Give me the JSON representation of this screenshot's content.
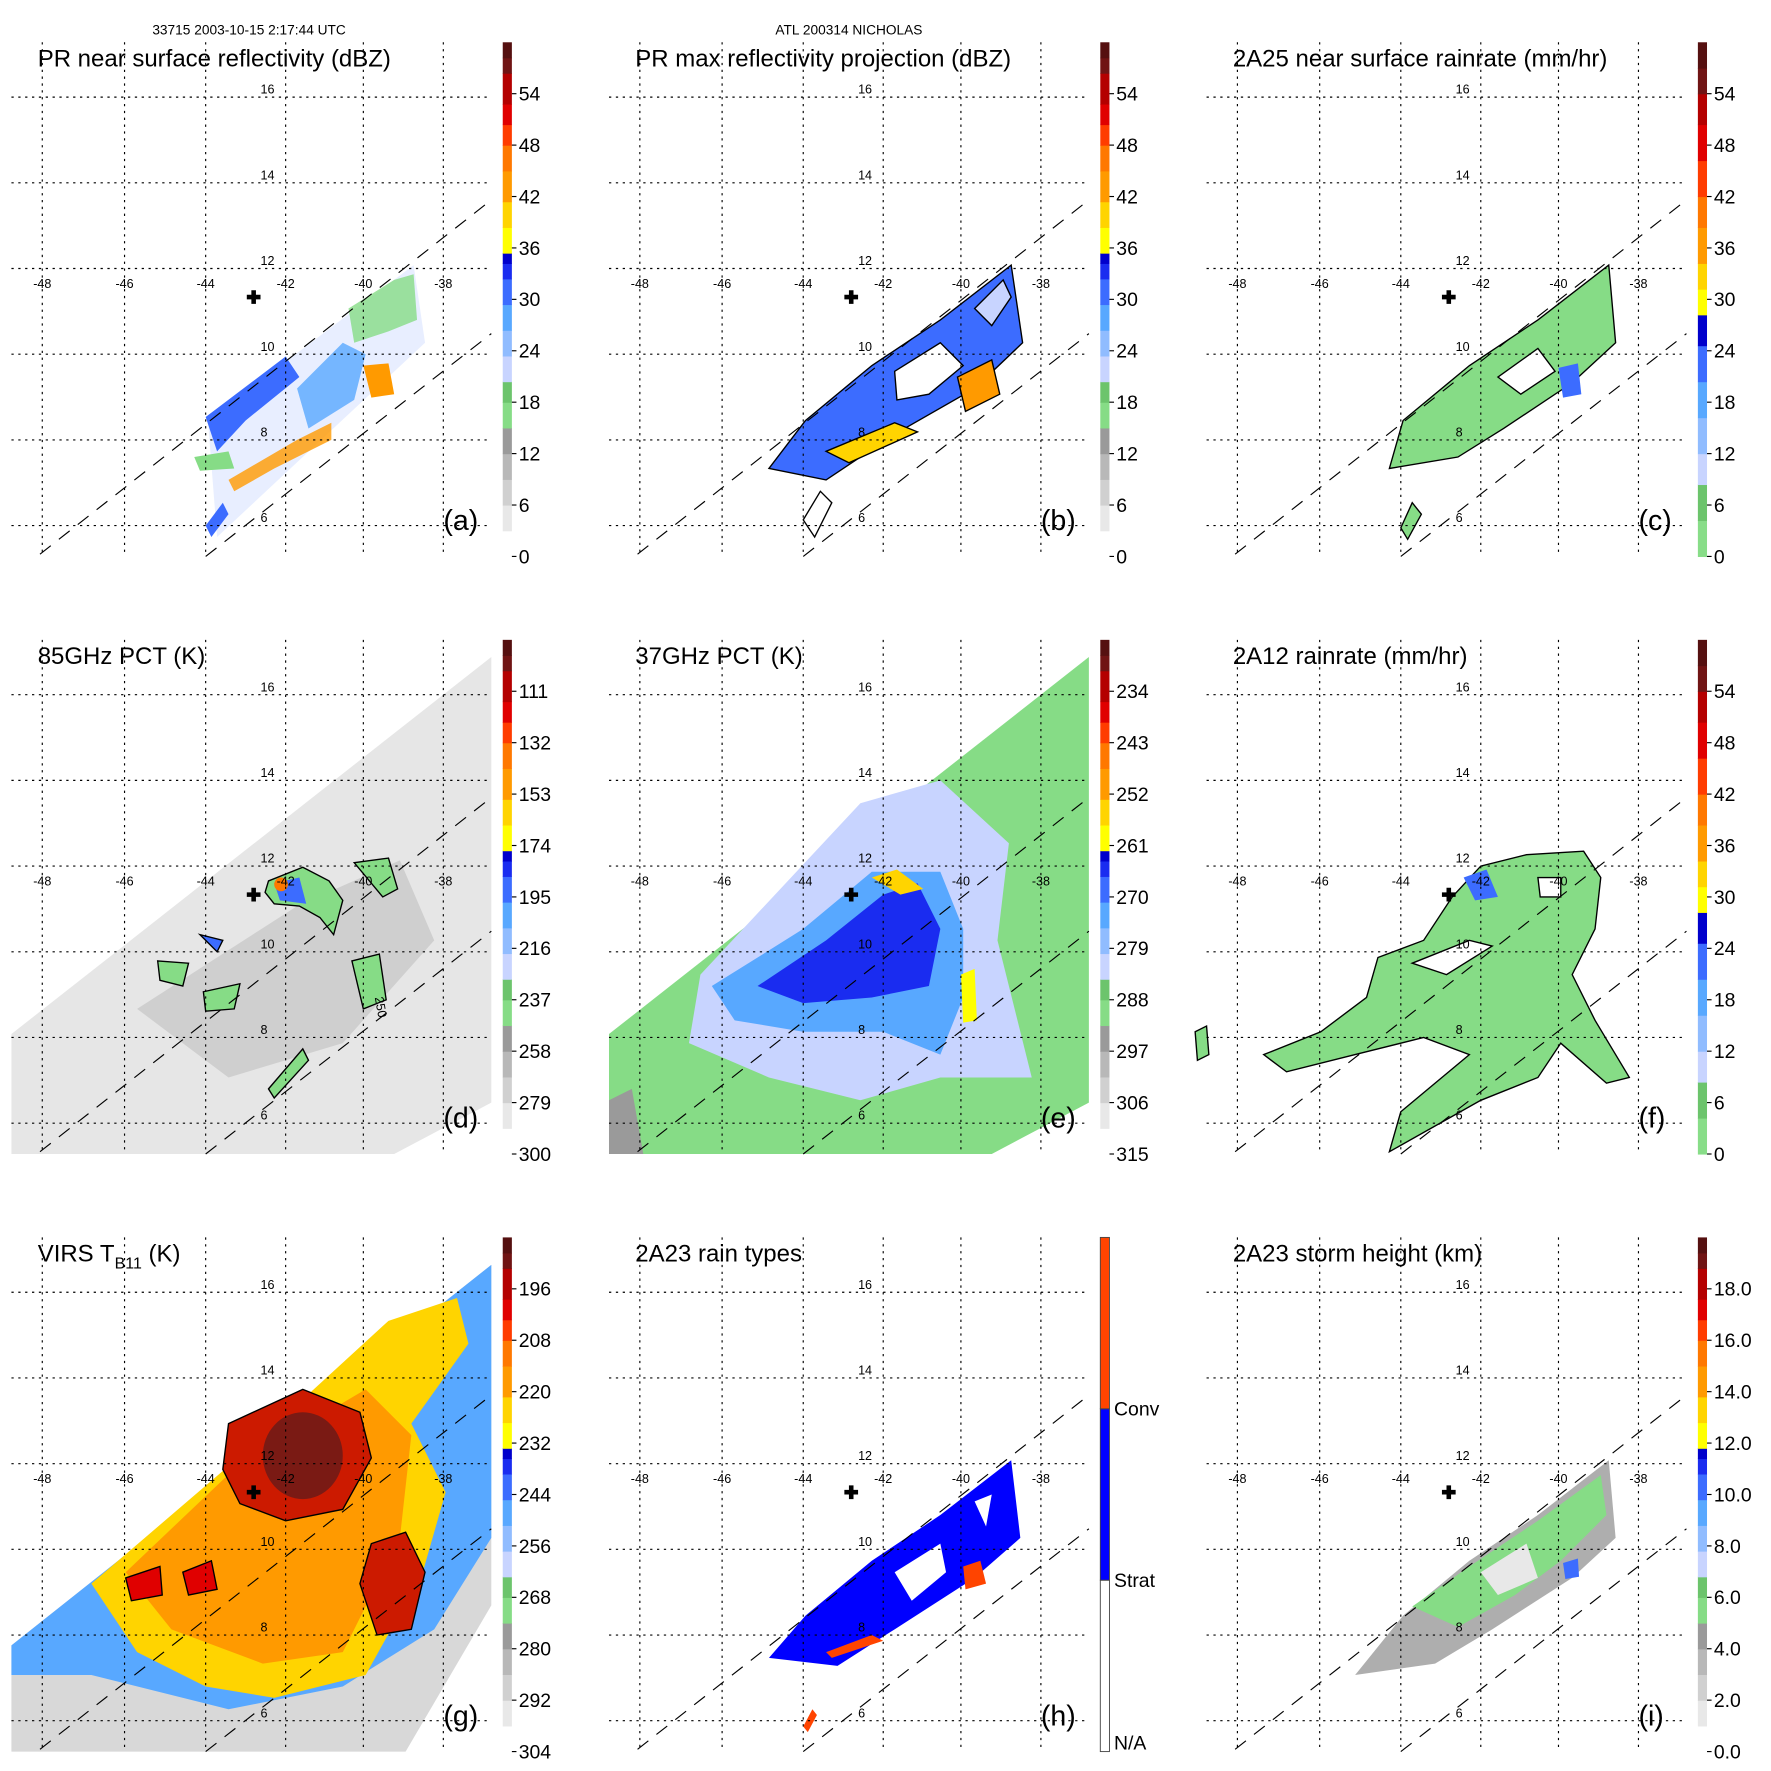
{
  "header": {
    "left": "33715 2003-10-15 2:17:44 UTC",
    "center": "ATL 200314 NICHOLAS"
  },
  "chart_data": {
    "type": "heatmap",
    "axes": {
      "lon_ticks": [
        "-48",
        "-46",
        "-44",
        "-42",
        "-40",
        "-38"
      ],
      "lat_ticks": [
        "16",
        "14",
        "12",
        "10",
        "8",
        "6"
      ],
      "storm_center": {
        "lon": -42.6,
        "lat": 11.4,
        "marker": "cross"
      }
    },
    "panels": [
      {
        "letter": "(a)",
        "title": "PR near surface reflectivity (dBZ)",
        "cbar": [
          "0",
          "6",
          "12",
          "18",
          "24",
          "30",
          "36",
          "42",
          "48",
          "54"
        ],
        "palette": "std"
      },
      {
        "letter": "(b)",
        "title": "PR max reflectivity projection (dBZ)",
        "cbar": [
          "0",
          "6",
          "12",
          "18",
          "24",
          "30",
          "36",
          "42",
          "48",
          "54"
        ],
        "palette": "std"
      },
      {
        "letter": "(c)",
        "title": "2A25 near surface rainrate (mm/hr)",
        "cbar": [
          "0",
          "6",
          "12",
          "18",
          "24",
          "30",
          "36",
          "42",
          "48",
          "54"
        ],
        "palette": "rain"
      },
      {
        "letter": "(d)",
        "title": "85GHz PCT (K)",
        "cbar": [
          "300",
          "279",
          "258",
          "237",
          "216",
          "195",
          "174",
          "153",
          "132",
          "111"
        ],
        "palette": "std"
      },
      {
        "letter": "(e)",
        "title": "37GHz PCT (K)",
        "cbar": [
          "315",
          "306",
          "297",
          "288",
          "279",
          "270",
          "261",
          "252",
          "243",
          "234"
        ],
        "palette": "std"
      },
      {
        "letter": "(f)",
        "title": "2A12 rainrate (mm/hr)",
        "cbar": [
          "0",
          "6",
          "12",
          "18",
          "24",
          "30",
          "36",
          "42",
          "48",
          "54"
        ],
        "palette": "rain"
      },
      {
        "letter": "(g)",
        "title": "VIRS T",
        "title_sub": "B11",
        "title_end": " (K)",
        "cbar": [
          "304",
          "292",
          "280",
          "268",
          "256",
          "244",
          "232",
          "220",
          "208",
          "196"
        ],
        "palette": "std"
      },
      {
        "letter": "(h)",
        "title": "2A23 rain types",
        "cbar": [
          "N/A",
          "Strat",
          "Conv"
        ],
        "palette": "types"
      },
      {
        "letter": "(i)",
        "title": "2A23 storm height (km)",
        "cbar": [
          "0.0",
          "2.0",
          "4.0",
          "6.0",
          "8.0",
          "10.0",
          "12.0",
          "14.0",
          "16.0",
          "18.0"
        ],
        "palette": "std"
      }
    ],
    "contour_label": "250",
    "palettes": {
      "std": [
        "#ffffff",
        "#e8e8e8",
        "#d0d0d0",
        "#b8b8b8",
        "#9a9a9a",
        "#86dc86",
        "#6cc46c",
        "#c8d4ff",
        "#90bcff",
        "#58a8ff",
        "#3c6cff",
        "#1a2cf0",
        "#0000cc",
        "#ffff00",
        "#ffd400",
        "#ff9a00",
        "#ff7800",
        "#ff3c00",
        "#e00000",
        "#b40000",
        "#701414",
        "#551010"
      ],
      "rain": [
        "#88dd88",
        "#6cc46c",
        "#c8d4ff",
        "#90bcff",
        "#58a8ff",
        "#3c6cff",
        "#0000cc",
        "#ffff00",
        "#ffd400",
        "#ff9a00",
        "#ff7800",
        "#ff3c00",
        "#e00000",
        "#b40000",
        "#701414",
        "#551010"
      ],
      "types": [
        "#ffffff",
        "#0000ff",
        "#ff4400"
      ]
    }
  }
}
